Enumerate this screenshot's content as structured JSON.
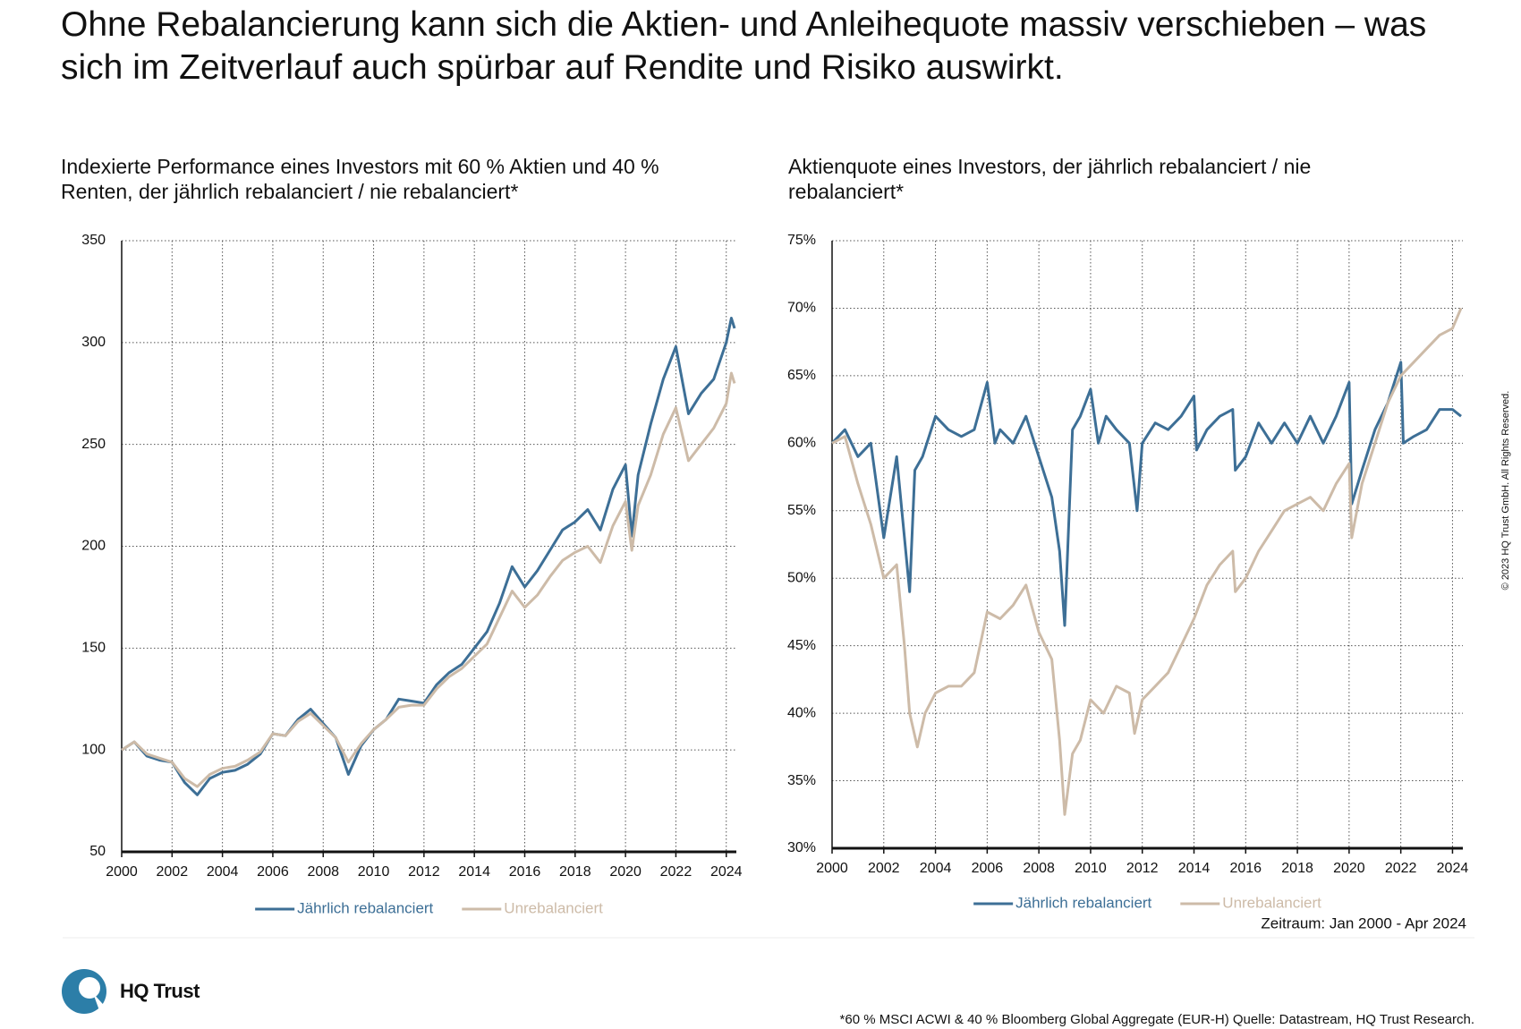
{
  "header": {
    "title": "Ohne Rebalancierung kann sich die Aktien- und Anleihequote massiv verschieben – was sich im Zeitverlauf auch spürbar auf Rendite und Risiko auswirkt."
  },
  "chart_data": [
    {
      "type": "line",
      "title": "Indexierte Performance eines Investors mit 60 % Aktien und 40 % Renten, der jährlich rebalanciert / nie rebalanciert*",
      "xlim": [
        2000,
        2024.4
      ],
      "xticks": [
        2000,
        2002,
        2004,
        2006,
        2008,
        2010,
        2012,
        2014,
        2016,
        2018,
        2020,
        2022,
        2024
      ],
      "ylim": [
        50,
        350
      ],
      "yticks": [
        50,
        100,
        150,
        200,
        250,
        300,
        350
      ],
      "grid": true,
      "legend": "bottom",
      "series": [
        {
          "name": "Jährlich rebalanciert",
          "color": "#3d6f96",
          "x": [
            2000,
            2000.5,
            2001,
            2001.5,
            2002,
            2002.5,
            2003,
            2003.5,
            2004,
            2004.5,
            2005,
            2005.5,
            2006,
            2006.5,
            2007,
            2007.5,
            2008,
            2008.5,
            2009,
            2009.5,
            2010,
            2010.5,
            2011,
            2011.5,
            2012,
            2012.5,
            2013,
            2013.5,
            2014,
            2014.5,
            2015,
            2015.5,
            2016,
            2016.5,
            2017,
            2017.5,
            2018,
            2018.5,
            2019,
            2019.5,
            2020,
            2020.25,
            2020.5,
            2021,
            2021.5,
            2022,
            2022.5,
            2023,
            2023.5,
            2024,
            2024.2,
            2024.33
          ],
          "values": [
            100,
            104,
            97,
            95,
            94,
            84,
            78,
            86,
            89,
            90,
            93,
            98,
            108,
            107,
            115,
            120,
            113,
            106,
            88,
            102,
            110,
            115,
            125,
            124,
            123,
            132,
            138,
            142,
            150,
            158,
            172,
            190,
            180,
            188,
            198,
            208,
            212,
            218,
            208,
            228,
            240,
            205,
            235,
            260,
            282,
            298,
            265,
            275,
            282,
            300,
            312,
            307
          ]
        },
        {
          "name": "Unrebalanciert",
          "color": "#cdbba8",
          "x": [
            2000,
            2000.5,
            2001,
            2001.5,
            2002,
            2002.5,
            2003,
            2003.5,
            2004,
            2004.5,
            2005,
            2005.5,
            2006,
            2006.5,
            2007,
            2007.5,
            2008,
            2008.5,
            2009,
            2009.5,
            2010,
            2010.5,
            2011,
            2011.5,
            2012,
            2012.5,
            2013,
            2013.5,
            2014,
            2014.5,
            2015,
            2015.5,
            2016,
            2016.5,
            2017,
            2017.5,
            2018,
            2018.5,
            2019,
            2019.5,
            2020,
            2020.25,
            2020.5,
            2021,
            2021.5,
            2022,
            2022.5,
            2023,
            2023.5,
            2024,
            2024.2,
            2024.33
          ],
          "values": [
            100,
            104,
            98,
            96,
            94,
            86,
            82,
            88,
            91,
            92,
            95,
            99,
            108,
            107,
            114,
            118,
            112,
            106,
            94,
            103,
            110,
            115,
            121,
            122,
            122,
            130,
            136,
            140,
            146,
            152,
            165,
            178,
            170,
            176,
            185,
            193,
            197,
            200,
            192,
            210,
            222,
            198,
            220,
            235,
            255,
            268,
            242,
            250,
            258,
            270,
            285,
            280
          ]
        }
      ]
    },
    {
      "type": "line",
      "title": "Aktienquote eines Investors, der jährlich rebalanciert / nie rebalanciert*",
      "note": "Zeitraum: Jan 2000 - Apr 2024",
      "xlim": [
        2000,
        2024.4
      ],
      "xticks": [
        2000,
        2002,
        2004,
        2006,
        2008,
        2010,
        2012,
        2014,
        2016,
        2018,
        2020,
        2022,
        2024
      ],
      "ylim": [
        30,
        75
      ],
      "yticks": [
        {
          "value": 30,
          "label": "30%"
        },
        {
          "value": 35,
          "label": "35%"
        },
        {
          "value": 40,
          "label": "40%"
        },
        {
          "value": 45,
          "label": "45%"
        },
        {
          "value": 50,
          "label": "50%"
        },
        {
          "value": 55,
          "label": "55%"
        },
        {
          "value": 60,
          "label": "60%"
        },
        {
          "value": 65,
          "label": "65%"
        },
        {
          "value": 70,
          "label": "70%"
        },
        {
          "value": 75,
          "label": "75%"
        }
      ],
      "grid": true,
      "legend": "bottom",
      "series": [
        {
          "name": "Jährlich rebalanciert",
          "color": "#3d6f96",
          "x": [
            2000,
            2000.5,
            2001,
            2001.5,
            2002,
            2002.5,
            2003,
            2003.2,
            2003.5,
            2004,
            2004.5,
            2005,
            2005.5,
            2006,
            2006.3,
            2006.5,
            2007,
            2007.5,
            2008,
            2008.5,
            2008.8,
            2009,
            2009.3,
            2009.6,
            2010,
            2010.3,
            2010.6,
            2011,
            2011.5,
            2011.8,
            2012,
            2012.5,
            2013,
            2013.5,
            2014,
            2014.1,
            2014.5,
            2015,
            2015.5,
            2015.6,
            2016,
            2016.5,
            2017,
            2017.5,
            2018,
            2018.5,
            2019,
            2019.5,
            2020,
            2020.1,
            2020.5,
            2021,
            2021.5,
            2022,
            2022.1,
            2022.5,
            2023,
            2023.5,
            2024,
            2024.33
          ],
          "values": [
            60,
            61,
            59,
            60,
            53,
            59,
            49,
            58,
            59,
            62,
            61,
            60.5,
            61,
            64.5,
            60,
            61,
            60,
            62,
            59,
            56,
            52,
            46.5,
            61,
            62,
            64,
            60,
            62,
            61,
            60,
            55,
            60,
            61.5,
            61,
            62,
            63.5,
            59.5,
            61,
            62,
            62.5,
            58,
            59,
            61.5,
            60,
            61.5,
            60,
            62,
            60,
            62,
            64.5,
            55.5,
            58,
            61,
            63,
            66,
            60,
            60.5,
            61,
            62.5,
            62.5,
            62
          ]
        },
        {
          "name": "Unrebalanciert",
          "color": "#cdbba8",
          "x": [
            2000,
            2000.5,
            2001,
            2001.5,
            2002,
            2002.5,
            2002.8,
            2003,
            2003.3,
            2003.6,
            2004,
            2004.5,
            2005,
            2005.5,
            2006,
            2006.5,
            2007,
            2007.5,
            2008,
            2008.5,
            2008.8,
            2009,
            2009.3,
            2009.6,
            2010,
            2010.5,
            2011,
            2011.5,
            2011.7,
            2012,
            2012.5,
            2013,
            2013.5,
            2014,
            2014.5,
            2015,
            2015.5,
            2015.6,
            2016,
            2016.5,
            2017,
            2017.5,
            2018,
            2018.5,
            2019,
            2019.5,
            2020,
            2020.1,
            2020.5,
            2021,
            2021.5,
            2022,
            2022.5,
            2023,
            2023.5,
            2024,
            2024.33
          ],
          "values": [
            60,
            60.5,
            57,
            54,
            50,
            51,
            45,
            40,
            37.5,
            40,
            41.5,
            42,
            42,
            43,
            47.5,
            47,
            48,
            49.5,
            46,
            44,
            38,
            32.5,
            37,
            38,
            41,
            40,
            42,
            41.5,
            38.5,
            41,
            42,
            43,
            45,
            47,
            49.5,
            51,
            52,
            49,
            50,
            52,
            53.5,
            55,
            55.5,
            56,
            55,
            57,
            58.5,
            53,
            57,
            60,
            63,
            65,
            66,
            67,
            68,
            68.5,
            70
          ]
        }
      ]
    }
  ],
  "footer": {
    "logo": "HQ Trust",
    "source": "*60 % MSCI ACWI & 40 % Bloomberg Global Aggregate (EUR-H) Quelle: Datastream, HQ Trust Research.",
    "copyright": "© 2023 HQ Trust GmbH. All Rights Reserved."
  }
}
